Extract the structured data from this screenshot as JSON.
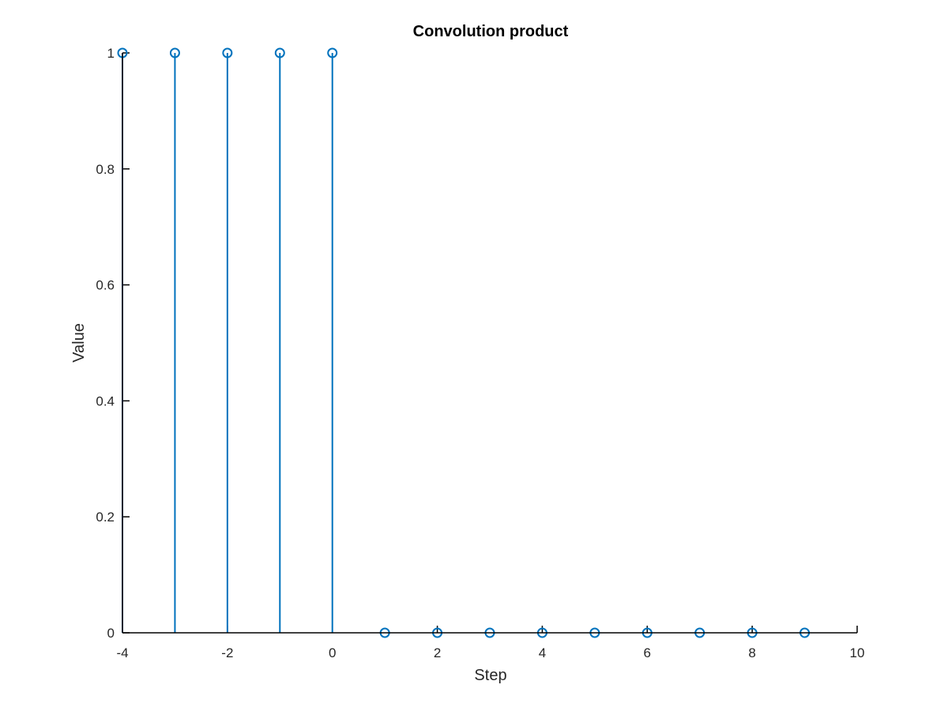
{
  "chart_data": {
    "type": "stem",
    "title": "Convolution product",
    "xlabel": "Step",
    "ylabel": "Value",
    "xlim": [
      -4,
      10
    ],
    "ylim": [
      0,
      1
    ],
    "xticks": [
      "-4",
      "-2",
      "0",
      "2",
      "4",
      "6",
      "8",
      "10"
    ],
    "yticks": [
      "0",
      "0.2",
      "0.4",
      "0.6",
      "0.8",
      "1"
    ],
    "grid": false,
    "marker": "circle",
    "color": "#0072BD",
    "series": [
      {
        "x": [
          -4,
          -3,
          -2,
          -1,
          0,
          1,
          2,
          3,
          4,
          5,
          6,
          7,
          8,
          9
        ],
        "y": [
          1,
          1,
          1,
          1,
          1,
          0,
          0,
          0,
          0,
          0,
          0,
          0,
          0,
          0
        ]
      }
    ]
  }
}
